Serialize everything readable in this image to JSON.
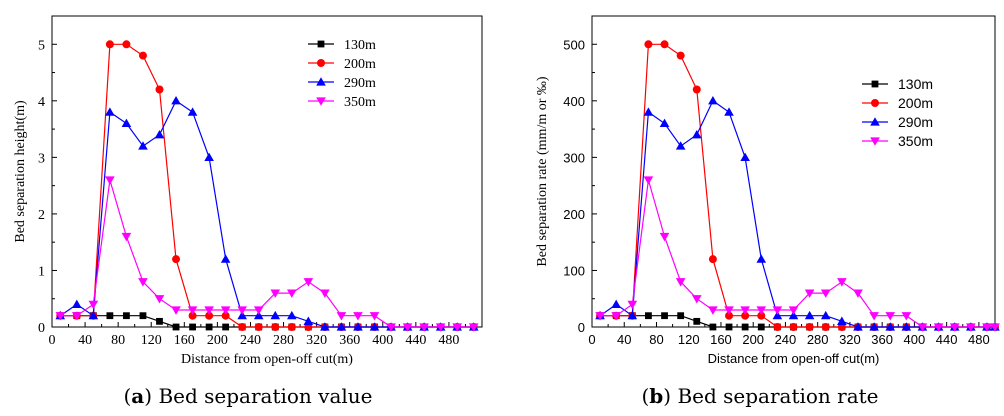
{
  "chart_data": [
    {
      "type": "line",
      "panel": "a",
      "caption": {
        "letter": "a",
        "text": "Bed separation value"
      },
      "xlabel": "Distance from open-off cut(m)",
      "ylabel": "Bed separation height(m)",
      "xlim": [
        0,
        520
      ],
      "ylim": [
        0,
        5.5
      ],
      "xticks": [
        0,
        40,
        80,
        120,
        160,
        200,
        240,
        280,
        320,
        360,
        400,
        440,
        480
      ],
      "xtick_labels": [
        "0",
        "40",
        "80",
        "120",
        "160",
        "200",
        "240",
        "280",
        "320",
        "360",
        "400",
        "440",
        "480"
      ],
      "yticks": [
        0,
        1,
        2,
        3,
        4,
        5
      ],
      "ytick_labels": [
        "0",
        "1",
        "2",
        "3",
        "4",
        "5"
      ],
      "legend_position": "top-right",
      "grid": false,
      "series": [
        {
          "name": "130m",
          "color": "#000000",
          "marker": "square",
          "x": [
            10,
            30,
            50,
            70,
            90,
            110,
            130,
            150,
            170,
            190,
            210,
            230,
            250,
            270,
            290,
            310,
            330,
            350,
            370,
            390,
            410,
            430,
            450,
            470,
            490,
            510
          ],
          "y": [
            0.2,
            0.2,
            0.2,
            0.2,
            0.2,
            0.2,
            0.1,
            0,
            0,
            0,
            0,
            0,
            0,
            0,
            0,
            0,
            0,
            0,
            0,
            0,
            0,
            0,
            0,
            0,
            0,
            0
          ]
        },
        {
          "name": "200m",
          "color": "#ff0000",
          "marker": "circle",
          "x": [
            10,
            30,
            50,
            70,
            90,
            110,
            130,
            150,
            170,
            190,
            210,
            230,
            250,
            270,
            290,
            310,
            330,
            350,
            370,
            390,
            410,
            430,
            450,
            470,
            490,
            510
          ],
          "y": [
            0.2,
            0.2,
            0.2,
            5.0,
            5.0,
            4.8,
            4.2,
            1.2,
            0.2,
            0.2,
            0.2,
            0,
            0,
            0,
            0,
            0,
            0,
            0,
            0,
            0,
            0,
            0,
            0,
            0,
            0,
            0
          ]
        },
        {
          "name": "290m",
          "color": "#0000ff",
          "marker": "triangle-up",
          "x": [
            10,
            30,
            50,
            70,
            90,
            110,
            130,
            150,
            170,
            190,
            210,
            230,
            250,
            270,
            290,
            310,
            330,
            350,
            370,
            390,
            410,
            430,
            450,
            470,
            490,
            510
          ],
          "y": [
            0.2,
            0.4,
            0.2,
            3.8,
            3.6,
            3.2,
            3.4,
            4.0,
            3.8,
            3.0,
            1.2,
            0.2,
            0.2,
            0.2,
            0.2,
            0.1,
            0,
            0,
            0,
            0,
            0,
            0,
            0,
            0,
            0,
            0
          ]
        },
        {
          "name": "350m",
          "color": "#ff00ff",
          "marker": "triangle-down",
          "x": [
            10,
            30,
            50,
            70,
            90,
            110,
            130,
            150,
            170,
            190,
            210,
            230,
            250,
            270,
            290,
            310,
            330,
            350,
            370,
            390,
            410,
            430,
            450,
            470,
            490,
            510
          ],
          "y": [
            0.2,
            0.2,
            0.4,
            2.6,
            1.6,
            0.8,
            0.5,
            0.3,
            0.3,
            0.3,
            0.3,
            0.3,
            0.3,
            0.6,
            0.6,
            0.8,
            0.6,
            0.2,
            0.2,
            0.2,
            0,
            0,
            0,
            0,
            0,
            0
          ]
        }
      ]
    },
    {
      "type": "line",
      "panel": "b",
      "caption": {
        "letter": "b",
        "text": "Bed separation rate"
      },
      "xlabel": "Distance from open-off cut(m)",
      "ylabel": "Bed separation rate (mm/m or ‰)",
      "xlim": [
        0,
        500
      ],
      "ylim": [
        0,
        550
      ],
      "xticks": [
        0,
        40,
        80,
        120,
        160,
        200,
        240,
        280,
        320,
        360,
        400,
        440,
        480
      ],
      "xtick_labels": [
        "0",
        "40",
        "80",
        "120",
        "160",
        "200",
        "240",
        "280",
        "320",
        "360",
        "400",
        "440",
        "480"
      ],
      "yticks": [
        0,
        100,
        200,
        300,
        400,
        500
      ],
      "ytick_labels": [
        "0",
        "100",
        "200",
        "300",
        "400",
        "500"
      ],
      "legend_position": "top-right",
      "grid": false,
      "series": [
        {
          "name": "130m",
          "color": "#000000",
          "marker": "square",
          "x": [
            10,
            30,
            50,
            70,
            90,
            110,
            130,
            150,
            170,
            190,
            210,
            230,
            250,
            270,
            290,
            310,
            330,
            350,
            370,
            390,
            410,
            430,
            450,
            470,
            490,
            500
          ],
          "y": [
            20,
            20,
            20,
            20,
            20,
            20,
            10,
            0,
            0,
            0,
            0,
            0,
            0,
            0,
            0,
            0,
            0,
            0,
            0,
            0,
            0,
            0,
            0,
            0,
            0,
            0
          ]
        },
        {
          "name": "200m",
          "color": "#ff0000",
          "marker": "circle",
          "x": [
            10,
            30,
            50,
            70,
            90,
            110,
            130,
            150,
            170,
            190,
            210,
            230,
            250,
            270,
            290,
            310,
            330,
            350,
            370,
            390,
            410,
            430,
            450,
            470,
            490,
            500
          ],
          "y": [
            20,
            20,
            20,
            500,
            500,
            480,
            420,
            120,
            20,
            20,
            20,
            0,
            0,
            0,
            0,
            0,
            0,
            0,
            0,
            0,
            0,
            0,
            0,
            0,
            0,
            0
          ]
        },
        {
          "name": "290m",
          "color": "#0000ff",
          "marker": "triangle-up",
          "x": [
            10,
            30,
            50,
            70,
            90,
            110,
            130,
            150,
            170,
            190,
            210,
            230,
            250,
            270,
            290,
            310,
            330,
            350,
            370,
            390,
            410,
            430,
            450,
            470,
            490,
            500
          ],
          "y": [
            20,
            40,
            20,
            380,
            360,
            320,
            340,
            400,
            380,
            300,
            120,
            20,
            20,
            20,
            20,
            10,
            0,
            0,
            0,
            0,
            0,
            0,
            0,
            0,
            0,
            0
          ]
        },
        {
          "name": "350m",
          "color": "#ff00ff",
          "marker": "triangle-down",
          "x": [
            10,
            30,
            50,
            70,
            90,
            110,
            130,
            150,
            170,
            190,
            210,
            230,
            250,
            270,
            290,
            310,
            330,
            350,
            370,
            390,
            410,
            430,
            450,
            470,
            490,
            500
          ],
          "y": [
            20,
            20,
            40,
            260,
            160,
            80,
            50,
            30,
            30,
            30,
            30,
            30,
            30,
            60,
            60,
            80,
            60,
            20,
            20,
            20,
            0,
            0,
            0,
            0,
            0,
            0
          ]
        }
      ]
    }
  ]
}
